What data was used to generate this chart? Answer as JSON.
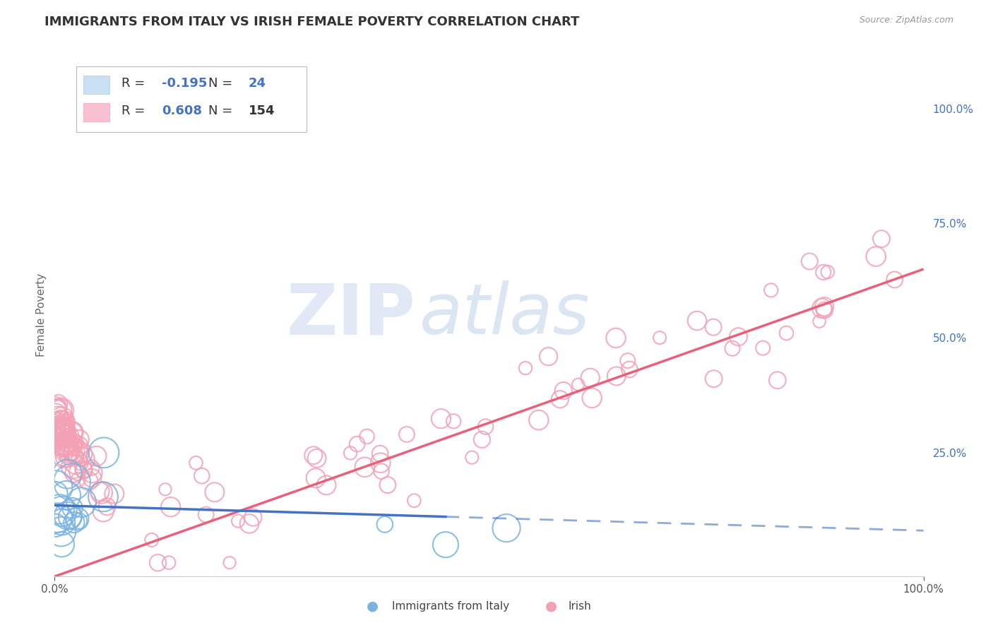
{
  "title": "IMMIGRANTS FROM ITALY VS IRISH FEMALE POVERTY CORRELATION CHART",
  "source_text": "Source: ZipAtlas.com",
  "ylabel": "Female Poverty",
  "watermark_zip": "ZIP",
  "watermark_atlas": "atlas",
  "xlim": [
    0.0,
    1.0
  ],
  "ylim": [
    -0.02,
    1.12
  ],
  "x_tick_labels": [
    "0.0%",
    "100.0%"
  ],
  "y_ticks_right": [
    0.25,
    0.5,
    0.75,
    1.0
  ],
  "y_tick_labels_right": [
    "25.0%",
    "50.0%",
    "75.0%",
    "100.0%"
  ],
  "legend_r1": "-0.195",
  "legend_n1": "24",
  "legend_r2": "0.608",
  "legend_n2": "154",
  "italy_color": "#7ab3e0",
  "irish_color": "#f4a0b5",
  "trendline_italy_color": "#4472c4",
  "trendline_irish_color": "#e8607a",
  "background_color": "#ffffff",
  "grid_color": "#c8d4e8",
  "title_color": "#333333",
  "title_fontsize": 13,
  "irish_trend_x0": 0.0,
  "irish_trend_y0": -0.02,
  "irish_trend_x1": 1.0,
  "irish_trend_y1": 0.65,
  "italy_trend_x0": 0.0,
  "italy_trend_y0": 0.135,
  "italy_trend_x1": 1.0,
  "italy_trend_y1": 0.08
}
